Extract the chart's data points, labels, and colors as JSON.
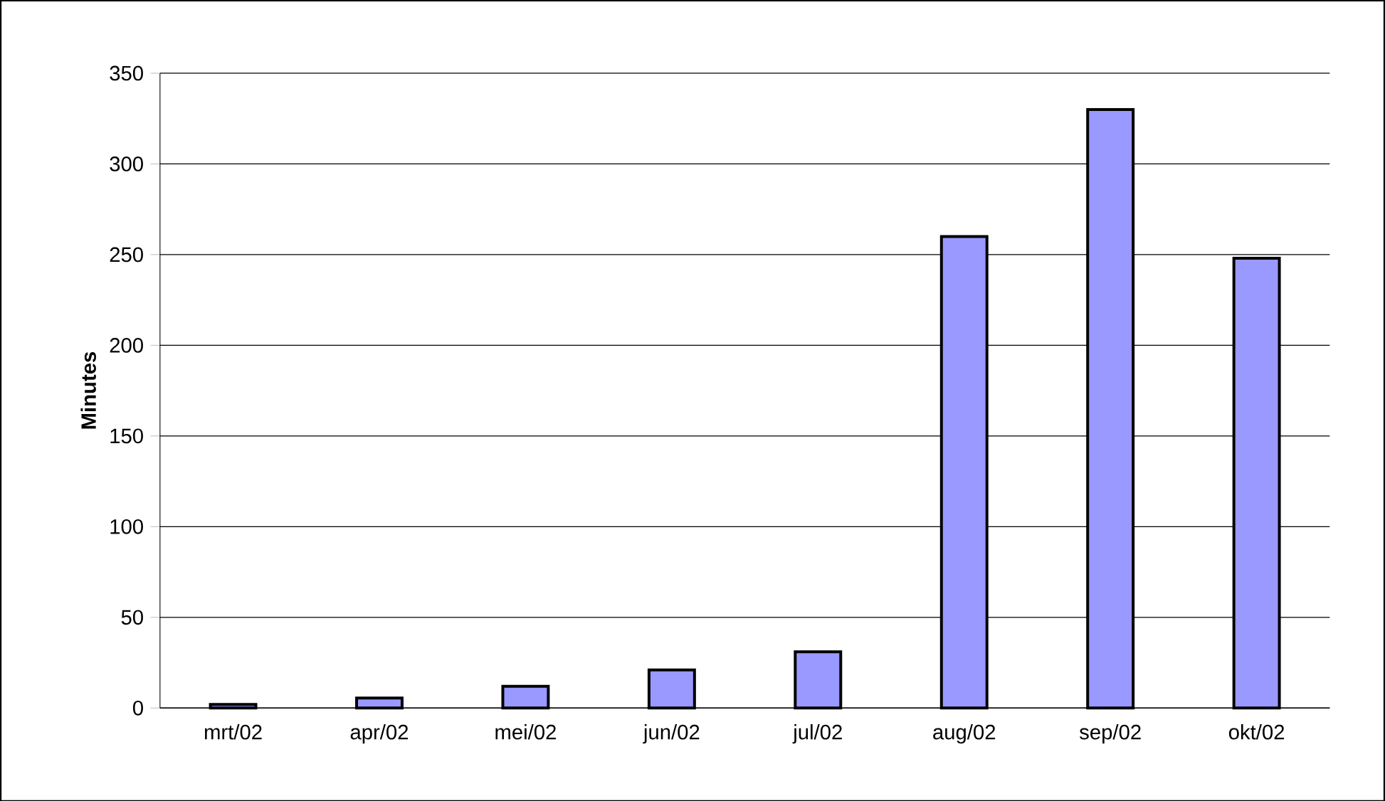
{
  "chart_data": {
    "type": "bar",
    "ylabel": "Minutes",
    "categories": [
      "mrt/02",
      "apr/02",
      "mei/02",
      "jun/02",
      "jul/02",
      "aug/02",
      "sep/02",
      "okt/02"
    ],
    "values": [
      2,
      5.5,
      12,
      21,
      31,
      260,
      330,
      248
    ],
    "color": "#9999ff",
    "ylim": [
      0,
      350
    ],
    "yticks": [
      0,
      50,
      100,
      150,
      200,
      250,
      300,
      350
    ],
    "grid": "y"
  }
}
